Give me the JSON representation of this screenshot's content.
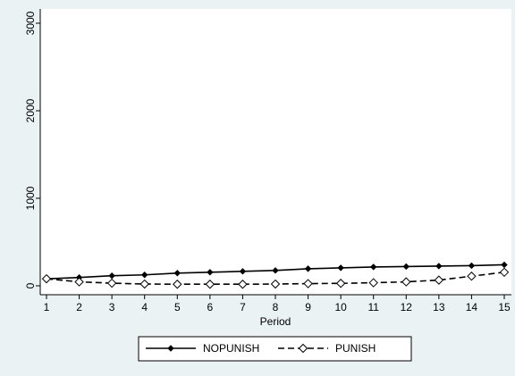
{
  "chart_data": {
    "type": "line",
    "x_label": "Period",
    "x": [
      1,
      2,
      3,
      4,
      5,
      6,
      7,
      8,
      9,
      10,
      11,
      12,
      13,
      14,
      15
    ],
    "xlim": [
      1,
      15
    ],
    "xticks": [
      1,
      2,
      3,
      4,
      5,
      6,
      7,
      8,
      9,
      10,
      11,
      12,
      13,
      14,
      15
    ],
    "ylim": [
      0,
      3000
    ],
    "yticks": [
      0,
      1000,
      2000,
      3000
    ],
    "series": [
      {
        "name": "NOPUNISH",
        "color": "#000000",
        "dash": false,
        "marker_filled": true,
        "values": [
          80,
          95,
          115,
          125,
          145,
          155,
          165,
          175,
          195,
          205,
          215,
          220,
          225,
          230,
          240
        ]
      },
      {
        "name": "PUNISH",
        "color": "#000000",
        "dash": true,
        "marker_filled": false,
        "values": [
          80,
          45,
          30,
          20,
          18,
          18,
          18,
          20,
          25,
          28,
          35,
          45,
          65,
          110,
          155
        ]
      }
    ]
  }
}
